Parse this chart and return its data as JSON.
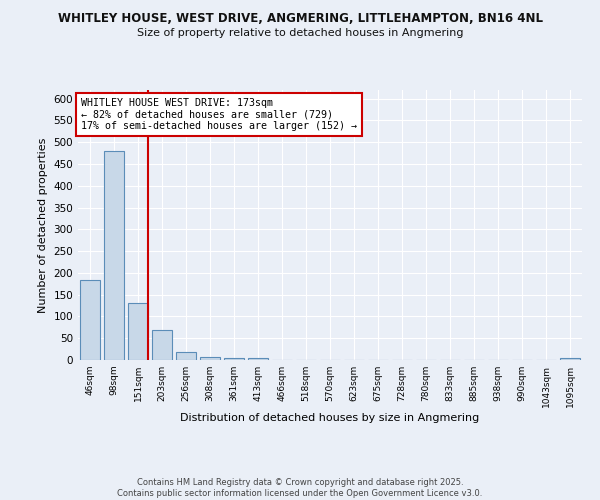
{
  "title_line1": "WHITLEY HOUSE, WEST DRIVE, ANGMERING, LITTLEHAMPTON, BN16 4NL",
  "title_line2": "Size of property relative to detached houses in Angmering",
  "xlabel": "Distribution of detached houses by size in Angmering",
  "ylabel": "Number of detached properties",
  "categories": [
    "46sqm",
    "98sqm",
    "151sqm",
    "203sqm",
    "256sqm",
    "308sqm",
    "361sqm",
    "413sqm",
    "466sqm",
    "518sqm",
    "570sqm",
    "623sqm",
    "675sqm",
    "728sqm",
    "780sqm",
    "833sqm",
    "885sqm",
    "938sqm",
    "990sqm",
    "1043sqm",
    "1095sqm"
  ],
  "values": [
    183,
    480,
    130,
    70,
    18,
    8,
    5,
    5,
    0,
    0,
    0,
    0,
    0,
    0,
    0,
    0,
    0,
    0,
    0,
    0,
    4
  ],
  "bar_color": "#c8d8e8",
  "bar_edge_color": "#5b8db8",
  "annotation_text": "WHITLEY HOUSE WEST DRIVE: 173sqm\n← 82% of detached houses are smaller (729)\n17% of semi-detached houses are larger (152) →",
  "annotation_box_color": "#ffffff",
  "annotation_box_edge": "#cc0000",
  "annotation_text_color": "#000000",
  "red_line_color": "#cc0000",
  "ylim": [
    0,
    620
  ],
  "yticks": [
    0,
    50,
    100,
    150,
    200,
    250,
    300,
    350,
    400,
    450,
    500,
    550,
    600
  ],
  "background_color": "#eaeff7",
  "plot_bg_color": "#eaeff7",
  "grid_color": "#ffffff",
  "footer_line1": "Contains HM Land Registry data © Crown copyright and database right 2025.",
  "footer_line2": "Contains public sector information licensed under the Open Government Licence v3.0."
}
